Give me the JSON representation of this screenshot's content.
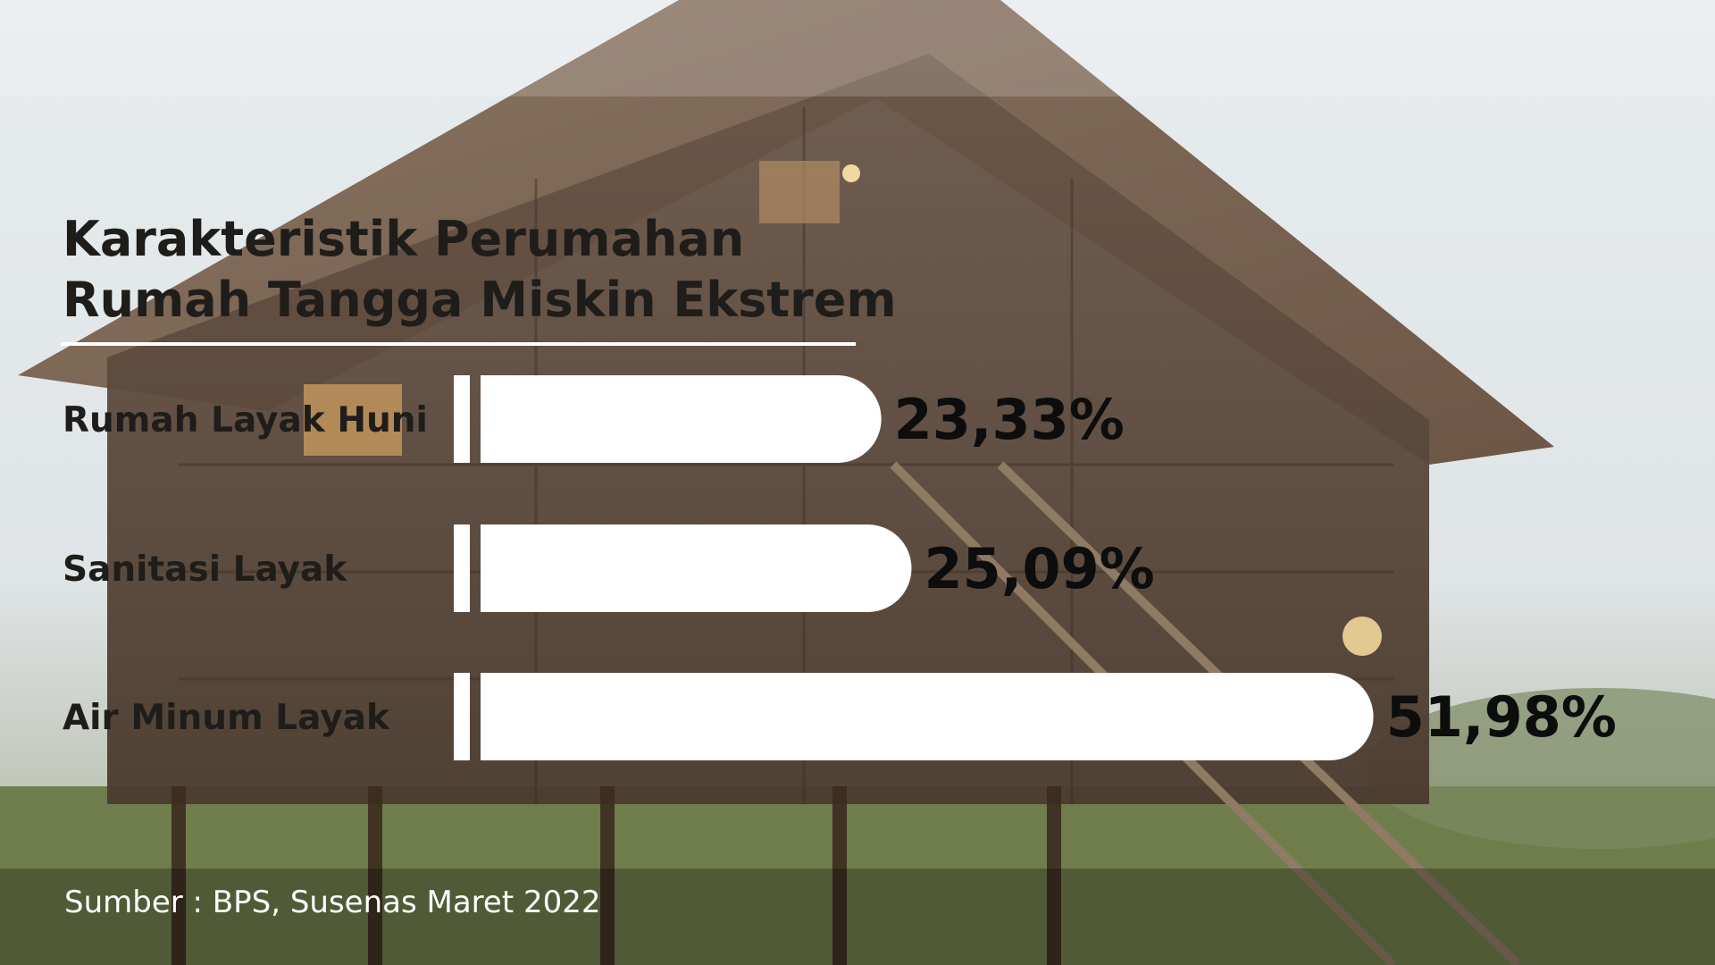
{
  "colors": {
    "bar": "#ffffff",
    "title": "#1f1d1a",
    "label": "#1f1d1a",
    "value": "#0d0d0d",
    "source_text": "#ffffff",
    "overlay": "#000000"
  },
  "source": "Sumber : BPS, Susenas Maret 2022",
  "chart_data": {
    "type": "bar",
    "orientation": "horizontal",
    "title_lines": [
      "Karakteristik Perumahan",
      "Rumah Tangga Miskin Ekstrem"
    ],
    "categories": [
      "Rumah Layak Huni",
      "Sanitasi Layak",
      "Air Minum Layak"
    ],
    "values": [
      23.33,
      25.09,
      51.98
    ],
    "value_labels": [
      "23,33%",
      "25,09%",
      "51,98%"
    ],
    "xlim": [
      0,
      52
    ],
    "grid": false
  }
}
